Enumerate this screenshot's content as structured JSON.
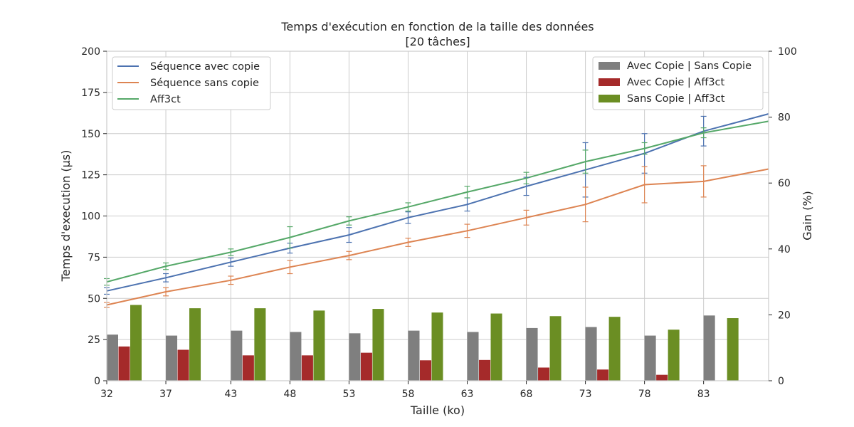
{
  "chart_data": {
    "type": "bar+line",
    "title": "Temps d'exécution en fonction de la taille des données",
    "subtitle": "[20 tâches]",
    "xlabel": "Taille (ko)",
    "ylabel": "Temps d'execution (µs)",
    "y2label": "Gain (%)",
    "ylim": [
      0,
      200
    ],
    "y2lim": [
      0,
      100
    ],
    "xlim": [
      32,
      88
    ],
    "yticks": [
      "0",
      "25",
      "50",
      "75",
      "100",
      "125",
      "150",
      "175",
      "200"
    ],
    "y2ticks": [
      "0",
      "20",
      "40",
      "60",
      "80",
      "100"
    ],
    "xticks": [
      "32",
      "37",
      "43",
      "48",
      "53",
      "58",
      "63",
      "68",
      "73",
      "78",
      "83"
    ],
    "grid": true,
    "line_legend_position": "upper-left",
    "bar_legend_position": "upper-right",
    "lines": [
      {
        "name": "Séquence avec copie",
        "color": "#4c72b0",
        "x": [
          32,
          37,
          42.5,
          47.5,
          52.5,
          57.5,
          62.5,
          67.5,
          72.5,
          77.5,
          82.5,
          88
        ],
        "y": [
          54.5,
          62.5,
          72,
          80.5,
          88.5,
          99,
          107,
          118,
          128,
          138,
          151.5,
          162
        ],
        "err": [
          2,
          2.5,
          2.5,
          3,
          4.5,
          3.5,
          4,
          5.5,
          16.5,
          12,
          9,
          null
        ]
      },
      {
        "name": "Séquence sans copie",
        "color": "#dd8452",
        "x": [
          32,
          37,
          42.5,
          47.5,
          52.5,
          57.5,
          62.5,
          67.5,
          72.5,
          77.5,
          82.5,
          88
        ],
        "y": [
          46,
          54,
          61,
          69,
          76,
          84,
          91,
          99,
          107,
          119,
          121,
          128.5
        ],
        "err": [
          1.5,
          2.5,
          2.5,
          4,
          2.5,
          2.5,
          4,
          4.5,
          10.5,
          11,
          9.5,
          null
        ]
      },
      {
        "name": "Aff3ct",
        "color": "#55a868",
        "x": [
          32,
          37,
          42.5,
          47.5,
          52.5,
          57.5,
          62.5,
          67.5,
          72.5,
          77.5,
          82.5,
          88
        ],
        "y": [
          60,
          69.5,
          78,
          87,
          97,
          105.5,
          114.5,
          123,
          133,
          141,
          150.5,
          157.5
        ],
        "err": [
          2,
          2,
          2,
          6.5,
          2.5,
          2.5,
          3.5,
          3.5,
          7,
          3.5,
          3,
          null
        ]
      }
    ],
    "bar_series": [
      {
        "name": "Avec Copie | Sans Copie",
        "color": "#7f7f7f",
        "values": [
          14,
          13.7,
          15.2,
          14.8,
          14.4,
          15.2,
          14.8,
          16,
          16.3,
          13.7,
          19.8
        ]
      },
      {
        "name": "Avec Copie | Aff3ct",
        "color": "#a52a2a",
        "values": [
          10.4,
          9.4,
          7.7,
          7.7,
          8.5,
          6.2,
          6.3,
          4,
          3.4,
          1.8,
          0
        ]
      },
      {
        "name": "Sans Copie | Aff3ct",
        "color": "#6b8e23",
        "values": [
          23,
          22,
          22,
          21.3,
          21.8,
          20.7,
          20.4,
          19.6,
          19.4,
          15.5,
          19
        ]
      }
    ]
  }
}
